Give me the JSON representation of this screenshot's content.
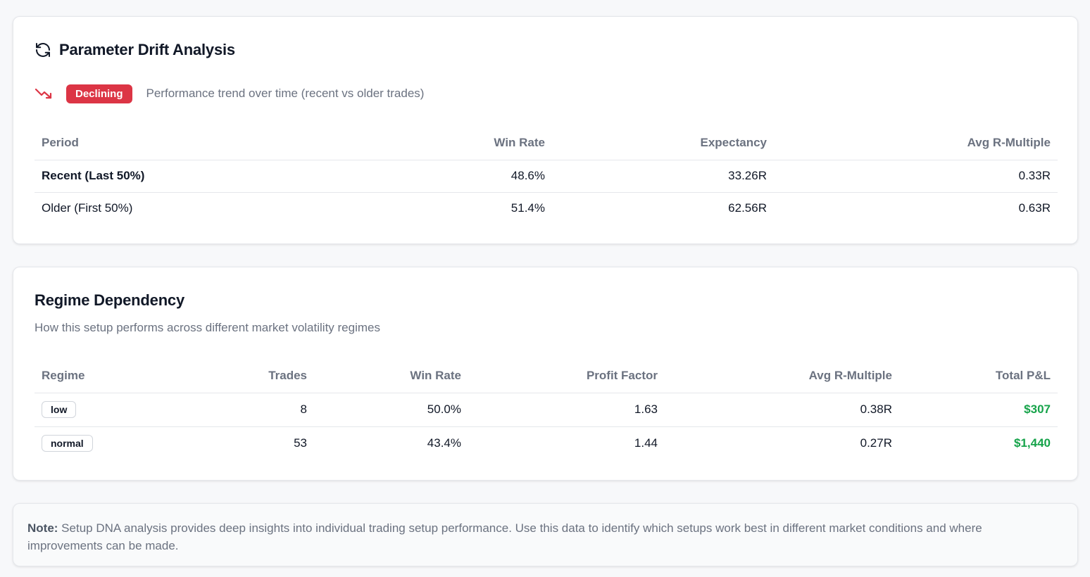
{
  "drift": {
    "title": "Parameter Drift Analysis",
    "trend_badge": "Declining",
    "trend_description": "Performance trend over time (recent vs older trades)",
    "headers": [
      "Period",
      "Win Rate",
      "Expectancy",
      "Avg R-Multiple"
    ],
    "rows": [
      {
        "period": "Recent (Last 50%)",
        "win_rate": "48.6%",
        "expectancy": "33.26R",
        "avg_r": "0.33R"
      },
      {
        "period": "Older (First 50%)",
        "win_rate": "51.4%",
        "expectancy": "62.56R",
        "avg_r": "0.63R"
      }
    ]
  },
  "regime": {
    "title": "Regime Dependency",
    "subtitle": "How this setup performs across different market volatility regimes",
    "headers": [
      "Regime",
      "Trades",
      "Win Rate",
      "Profit Factor",
      "Avg R-Multiple",
      "Total P&L"
    ],
    "rows": [
      {
        "regime": "low",
        "trades": "8",
        "win_rate": "50.0%",
        "profit_factor": "1.63",
        "avg_r": "0.38R",
        "pnl": "$307"
      },
      {
        "regime": "normal",
        "trades": "53",
        "win_rate": "43.4%",
        "profit_factor": "1.44",
        "avg_r": "0.27R",
        "pnl": "$1,440"
      }
    ]
  },
  "note": {
    "label": "Note:",
    "text": " Setup DNA analysis provides deep insights into individual trading setup performance. Use this data to identify which setups work best in different market conditions and where improvements can be made."
  },
  "colors": {
    "declining": "#dc3545",
    "positive_pnl": "#16a34a",
    "muted_text": "#6b7280"
  },
  "icons": {
    "drift_title": "refresh-icon",
    "trend": "trending-down-icon"
  }
}
